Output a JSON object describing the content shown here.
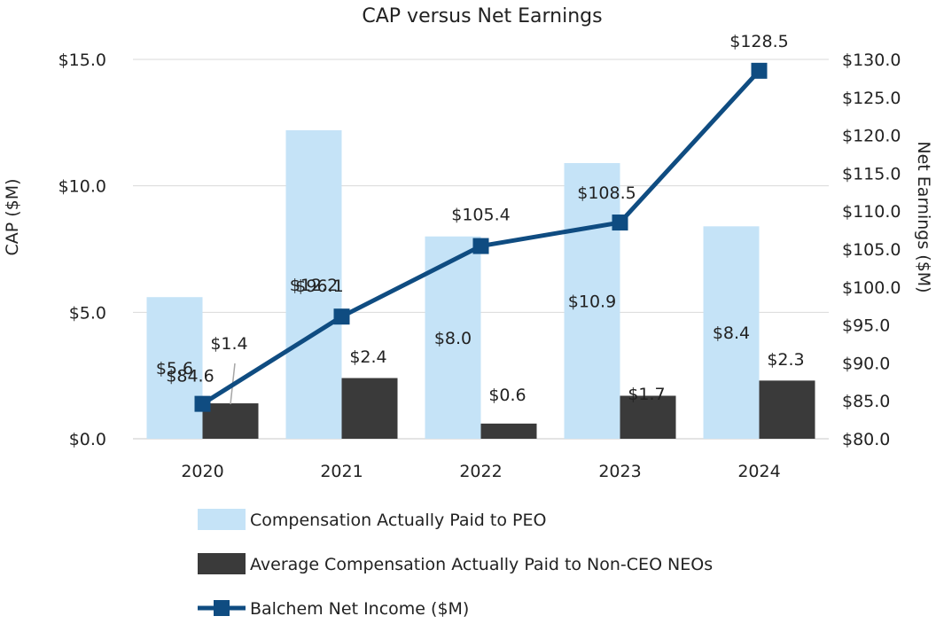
{
  "chart_data": {
    "type": "bar+line",
    "title": "CAP versus Net Earnings",
    "categories": [
      "2020",
      "2021",
      "2022",
      "2023",
      "2024"
    ],
    "y_left": {
      "label": "CAP ($M)",
      "range": [
        0,
        15
      ],
      "ticks": [
        0,
        5,
        10,
        15
      ],
      "tick_labels": [
        "$0.0",
        "$5.0",
        "$10.0",
        "$15.0"
      ]
    },
    "y_right": {
      "label": "Net Earnings ($M)",
      "range": [
        80,
        130
      ],
      "ticks": [
        80,
        85,
        90,
        95,
        100,
        105,
        110,
        115,
        120,
        125,
        130
      ],
      "tick_labels": [
        "$80.0",
        "$85.0",
        "$90.0",
        "$95.0",
        "$100.0",
        "$105.0",
        "$110.0",
        "$115.0",
        "$120.0",
        "$125.0",
        "$130.0"
      ]
    },
    "grid": true,
    "legend_position": "bottom",
    "series": [
      {
        "name": "Compensation Actually Paid to PEO",
        "type": "bar",
        "axis": "left",
        "color": "#c5e3f7",
        "values": [
          5.6,
          12.2,
          8.0,
          10.9,
          8.4
        ],
        "labels": [
          "$5.6",
          "$12.2",
          "$8.0",
          "$10.9",
          "$8.4"
        ]
      },
      {
        "name": "Average Compensation Actually Paid to Non-CEO NEOs",
        "type": "bar",
        "axis": "left",
        "color": "#3a3a3a",
        "values": [
          1.4,
          2.4,
          0.6,
          1.7,
          2.3
        ],
        "labels": [
          "$1.4",
          "$2.4",
          "$0.6",
          "$1.7",
          "$2.3"
        ]
      },
      {
        "name": "Balchem Net Income ($M)",
        "type": "line",
        "axis": "right",
        "color": "#0f4c81",
        "values": [
          84.6,
          96.1,
          105.4,
          108.5,
          128.5
        ],
        "labels": [
          "$84.6",
          "$96.1",
          "$105.4",
          "$108.5",
          "$128.5"
        ]
      }
    ]
  }
}
